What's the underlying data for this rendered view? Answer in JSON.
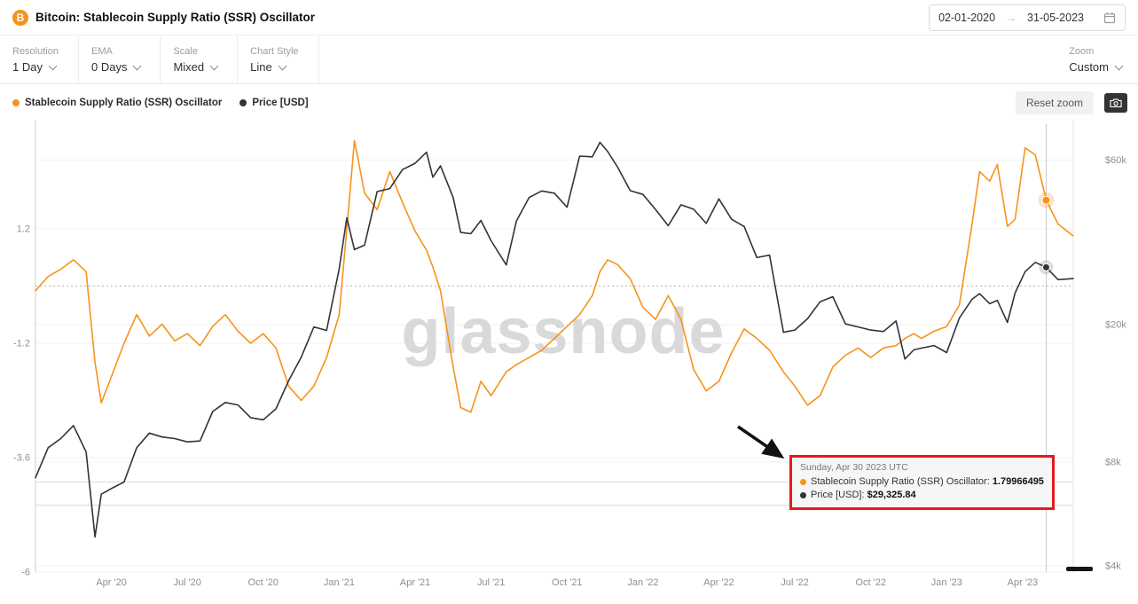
{
  "header": {
    "coin_symbol": "B",
    "title": "Bitcoin: Stablecoin Supply Ratio (SSR) Oscillator",
    "date_range": {
      "start": "02-01-2020",
      "arrow": "→",
      "end": "31-05-2023"
    }
  },
  "toolbar": {
    "controls": [
      {
        "label": "Resolution",
        "value": "1 Day"
      },
      {
        "label": "EMA",
        "value": "0 Days"
      },
      {
        "label": "Scale",
        "value": "Mixed"
      },
      {
        "label": "Chart Style",
        "value": "Line"
      }
    ],
    "zoom": {
      "label": "Zoom",
      "value": "Custom"
    }
  },
  "legend": [
    {
      "name": "Stablecoin Supply Ratio (SSR) Oscillator",
      "color": "#f7931a"
    },
    {
      "name": "Price [USD]",
      "color": "#30333a"
    }
  ],
  "actions": {
    "reset_zoom": "Reset zoom"
  },
  "tooltip": {
    "date": "Sunday, Apr 30 2023 UTC",
    "rows": [
      {
        "label": "Stablecoin Supply Ratio (SSR) Oscillator:",
        "value": "1.79966495",
        "color": "#f7931a"
      },
      {
        "label": "Price [USD]:",
        "value": "$29,325.84",
        "color": "#30333a"
      }
    ]
  },
  "chart_data": {
    "type": "line",
    "title": "Bitcoin: Stablecoin Supply Ratio (SSR) Oscillator",
    "watermark": "glassnode",
    "x_domain": [
      0,
      41
    ],
    "x_domain_dates": [
      "2020-01-02",
      "2023-05-31"
    ],
    "x_tick_months": [
      3,
      6,
      9,
      12,
      15,
      18,
      21,
      24,
      27,
      30,
      33,
      36,
      39
    ],
    "x_tick_labels": [
      "Apr '20",
      "Jul '20",
      "Oct '20",
      "Jan '21",
      "Apr '21",
      "Jul '21",
      "Oct '21",
      "Jan '22",
      "Apr '22",
      "Jul '22",
      "Oct '22",
      "Jan '23",
      "Apr '23"
    ],
    "left_axis": {
      "name": "Stablecoin Supply Ratio (SSR) Oscillator",
      "ticks": [
        1.2,
        -1.2,
        -3.6,
        -6
      ],
      "tick_labels": [
        "1.2",
        "-1.2",
        "-3.6",
        "-6"
      ],
      "zero_line_dotted": 0,
      "range": [
        3.394,
        -6.0
      ],
      "scale": "linear"
    },
    "right_axis": {
      "name": "Price [USD]",
      "tick_values": [
        60000,
        20000,
        8000,
        4000
      ],
      "tick_labels": [
        "$60k",
        "$20k",
        "$8k",
        "$4k"
      ],
      "minor_gridline_values": [
        7000,
        6000
      ],
      "log_range": [
        4.882,
        3.584
      ],
      "scale": "log"
    },
    "x": [
      0,
      0.5,
      1,
      1.5,
      2,
      2.35,
      2.6,
      3,
      3.5,
      4,
      4.5,
      5,
      5.5,
      6,
      6.5,
      7,
      7.5,
      8,
      8.5,
      9,
      9.5,
      10,
      10.5,
      11,
      11.5,
      12,
      12.3,
      12.6,
      13,
      13.5,
      14,
      14.5,
      15,
      15.45,
      15.7,
      16,
      16.5,
      16.8,
      17.2,
      17.6,
      18,
      18.6,
      19,
      19.5,
      20,
      20.5,
      21,
      21.5,
      22,
      22.3,
      22.6,
      23,
      23.5,
      24,
      24.5,
      25,
      25.5,
      26,
      26.5,
      27,
      27.5,
      28,
      28.5,
      29,
      29.55,
      30,
      30.5,
      31,
      31.5,
      32,
      32.5,
      33,
      33.5,
      34,
      34.35,
      34.7,
      35,
      35.5,
      36,
      36.5,
      37,
      37.3,
      37.7,
      38,
      38.4,
      38.7,
      39.1,
      39.5,
      39.93,
      40.4,
      41
    ],
    "series": [
      {
        "name": "Stablecoin Supply Ratio (SSR) Oscillator",
        "color": "#f7931a",
        "axis": "left",
        "values": [
          -0.1,
          0.2,
          0.35,
          0.55,
          0.3,
          -1.6,
          -2.45,
          -1.9,
          -1.2,
          -0.6,
          -1.05,
          -0.8,
          -1.15,
          -1.0,
          -1.25,
          -0.85,
          -0.6,
          -0.95,
          -1.2,
          -1.0,
          -1.3,
          -2.1,
          -2.4,
          -2.1,
          -1.5,
          -0.6,
          1.2,
          3.05,
          1.95,
          1.6,
          2.4,
          1.75,
          1.15,
          0.75,
          0.4,
          -0.1,
          -1.7,
          -2.55,
          -2.65,
          -2.0,
          -2.3,
          -1.8,
          -1.65,
          -1.5,
          -1.35,
          -1.1,
          -0.85,
          -0.6,
          -0.2,
          0.3,
          0.55,
          0.45,
          0.15,
          -0.45,
          -0.7,
          -0.2,
          -0.7,
          -1.75,
          -2.2,
          -2.0,
          -1.4,
          -0.9,
          -1.1,
          -1.35,
          -1.8,
          -2.1,
          -2.5,
          -2.3,
          -1.7,
          -1.45,
          -1.3,
          -1.5,
          -1.3,
          -1.25,
          -1.1,
          -1.0,
          -1.1,
          -0.95,
          -0.85,
          -0.4,
          1.3,
          2.4,
          2.2,
          2.55,
          1.25,
          1.4,
          2.9,
          2.75,
          1.79966495,
          1.3,
          1.05
        ]
      },
      {
        "name": "Price [USD]",
        "color": "#30333a",
        "axis": "right",
        "values": [
          7200,
          8800,
          9350,
          10200,
          8550,
          4850,
          6450,
          6700,
          7000,
          8800,
          9700,
          9450,
          9350,
          9150,
          9200,
          11200,
          11900,
          11700,
          10750,
          10600,
          11400,
          13750,
          16100,
          19700,
          19250,
          29000,
          40800,
          33000,
          34000,
          48600,
          49600,
          56300,
          58700,
          63200,
          53500,
          57700,
          46700,
          37000,
          36700,
          40100,
          35000,
          29800,
          39900,
          46700,
          48800,
          48100,
          43800,
          61600,
          61300,
          67500,
          63600,
          57200,
          48900,
          47700,
          43100,
          38700,
          44500,
          43200,
          39300,
          46300,
          40400,
          38500,
          31300,
          31800,
          19000,
          19300,
          20800,
          23300,
          24100,
          20100,
          19700,
          19300,
          19100,
          20500,
          15900,
          16900,
          17100,
          17400,
          16600,
          20900,
          23700,
          24600,
          23000,
          23500,
          20300,
          24700,
          28500,
          30300,
          29325.84,
          27000,
          27200
        ]
      }
    ],
    "highlight": {
      "month": 39.93,
      "date_label": "Sunday, Apr 30 2023 UTC",
      "ssr_value": 1.79966495,
      "price_value": 29325.84
    }
  }
}
